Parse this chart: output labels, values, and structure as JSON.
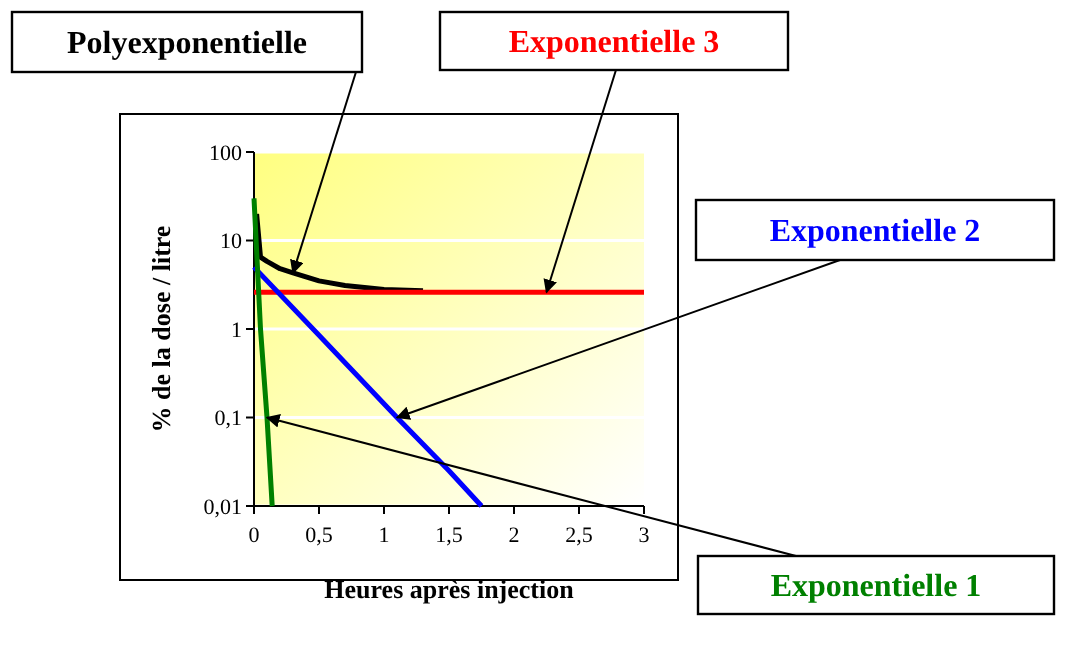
{
  "chart_data": {
    "type": "line",
    "xlabel": "Heures après injection",
    "ylabel": "% de la dose / litre",
    "log": "y",
    "grid": "y",
    "xlim": [
      0,
      3
    ],
    "xticks": [
      0,
      {
        "value": 0.5,
        "label": "0,5"
      },
      1,
      {
        "value": 1.5,
        "label": "1,5"
      },
      2,
      {
        "value": 2.5,
        "label": "2,5"
      },
      3
    ],
    "ylim": [
      0.01,
      100
    ],
    "yticks": [
      {
        "value": 0.01,
        "label": "0,01"
      },
      {
        "value": 0.1,
        "label": "0,1"
      },
      1,
      10,
      100
    ],
    "series": [
      {
        "name": "Polyexponentielle",
        "color": "#000000",
        "x": [
          0.02,
          0.05,
          0.1,
          0.2,
          0.3,
          0.5,
          0.7,
          1,
          1.3
        ],
        "values": [
          20,
          6.5,
          5.8,
          4.8,
          4.3,
          3.5,
          3.1,
          2.8,
          2.7
        ]
      },
      {
        "name": "Exponentielle 3",
        "color": "#ff0000",
        "x": [
          0,
          2.25,
          3
        ],
        "values": [
          2.6,
          2.6,
          2.6
        ]
      },
      {
        "name": "Exponentielle 2",
        "color": "#0000ff",
        "x": [
          0,
          0.5,
          1.1,
          1.5,
          1.75
        ],
        "values": [
          5,
          0.85,
          0.1,
          0.025,
          0.01
        ]
      },
      {
        "name": "Exponentielle 1",
        "color": "#008000",
        "x": [
          0,
          0.05,
          0.1,
          0.14
        ],
        "values": [
          30,
          1,
          0.1,
          0.01
        ]
      }
    ]
  }
}
